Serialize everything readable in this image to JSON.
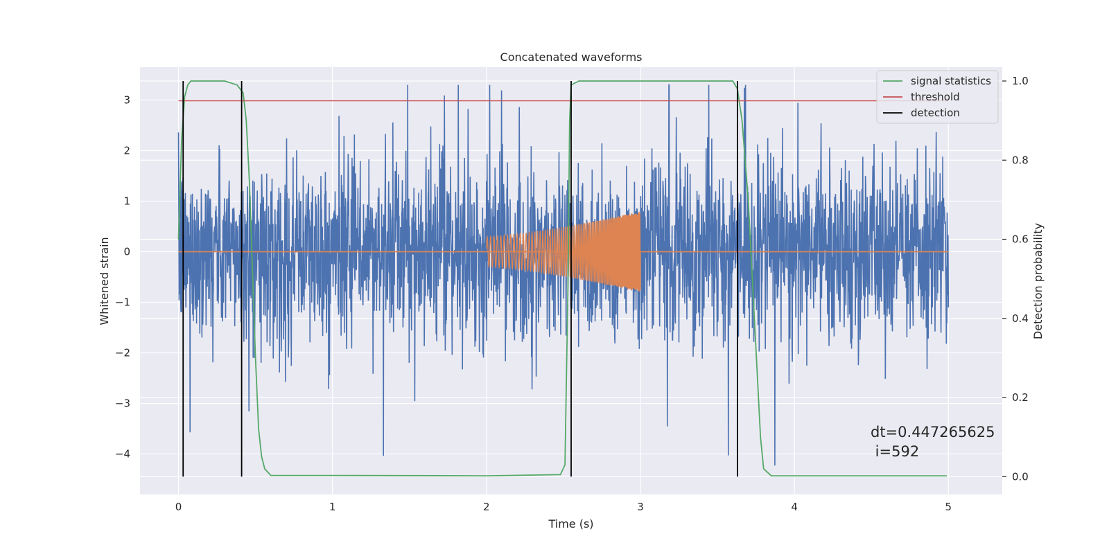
{
  "chart_data": {
    "type": "line",
    "title": "Concatenated waveforms",
    "xlabel": "Time (s)",
    "ylabel": "Whitened strain",
    "y2label": "Detection probability",
    "xlim": [
      -0.25,
      5.35
    ],
    "ylim": [
      -4.8,
      3.65
    ],
    "y2lim": [
      -0.045,
      1.035
    ],
    "xticks": [
      0,
      1,
      2,
      3,
      4,
      5
    ],
    "yticks": [
      -4,
      -3,
      -2,
      -1,
      0,
      1,
      2,
      3
    ],
    "y2ticks": [
      0.0,
      0.2,
      0.4,
      0.6,
      0.8,
      1.0
    ],
    "grid": true,
    "legend_position": "top-right",
    "colors": {
      "background": "#eaeaf2",
      "strain": "#4c72b0",
      "template": "#dd8452",
      "signal_statistics": "#55a868",
      "threshold": "#c44e52",
      "detection": "#000000"
    },
    "series": [
      {
        "name": "",
        "axis": "left",
        "role": "strain",
        "kind": "noise",
        "x_range": [
          0,
          5
        ],
        "amplitude": 0.85,
        "sample_rate": 2048
      },
      {
        "name": "",
        "axis": "left",
        "role": "template",
        "kind": "chirp",
        "x_range": [
          2,
          3
        ],
        "amplitude_start": 0.3,
        "amplitude_end": 0.8
      },
      {
        "name": "signal statistics",
        "axis": "right",
        "role": "signal_statistics",
        "x": [
          0,
          0.02,
          0.04,
          0.06,
          0.08,
          0.1,
          0.3,
          0.38,
          0.42,
          0.44,
          0.46,
          0.5,
          0.52,
          0.54,
          0.56,
          0.6,
          1.0,
          2.0,
          2.48,
          2.51,
          2.53,
          2.54,
          2.55,
          2.6,
          3.0,
          3.6,
          3.63,
          3.66,
          3.7,
          3.74,
          3.78,
          3.8,
          3.85,
          4.0,
          4.99
        ],
        "y": [
          0.6,
          0.85,
          0.96,
          0.99,
          1.0,
          1.0,
          1.0,
          0.99,
          0.97,
          0.9,
          0.75,
          0.3,
          0.12,
          0.05,
          0.02,
          0.003,
          0.003,
          0.002,
          0.005,
          0.03,
          0.5,
          0.9,
          0.99,
          1.0,
          1.0,
          1.0,
          0.98,
          0.9,
          0.7,
          0.4,
          0.1,
          0.02,
          0.002,
          0.002,
          0.002
        ]
      },
      {
        "name": "threshold",
        "axis": "right",
        "role": "threshold",
        "x": [
          0,
          5
        ],
        "y": [
          0.95,
          0.95
        ]
      },
      {
        "name": "detection",
        "axis": "right",
        "role": "detection",
        "x": [
          0.03,
          0.41,
          2.55,
          3.63
        ],
        "y_range": [
          0.0,
          1.0
        ]
      }
    ],
    "annotation": {
      "line1": "dt=0.447265625",
      "line2": " i=592"
    }
  }
}
